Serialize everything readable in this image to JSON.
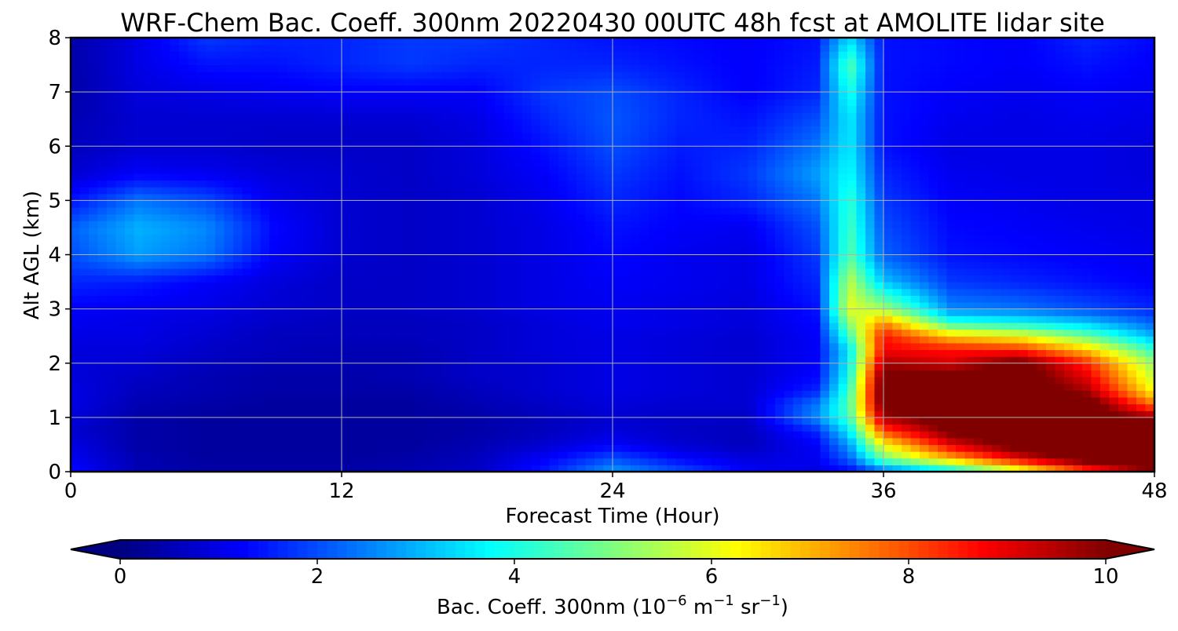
{
  "chart_data": {
    "type": "heatmap",
    "title": "WRF-Chem Bac. Coeff. 300nm  20220430 00UTC 48h fcst at AMOLITE lidar site",
    "xlabel": "Forecast Time (Hour)",
    "ylabel": "Alt AGL (km)",
    "xlim": [
      0,
      48
    ],
    "ylim": [
      0,
      8
    ],
    "xticks": [
      "0",
      "12",
      "24",
      "36",
      "48"
    ],
    "yticks": [
      "0",
      "1",
      "2",
      "3",
      "4",
      "5",
      "6",
      "7",
      "8"
    ],
    "grid": true,
    "colorbar": {
      "label_main": "Bac. Coeff. 300nm  (10",
      "label_exp1": "−6",
      "label_mid": " m",
      "label_exp2": "−1",
      "label_mid2": " sr",
      "label_exp3": "−1",
      "label_end": ")",
      "range": [
        0,
        10
      ],
      "ticks": [
        "0",
        "2",
        "4",
        "6",
        "8",
        "10"
      ],
      "extend": "both",
      "colormap": "jet",
      "under_color": "#000080",
      "over_color": "#800000",
      "placement": "bottom"
    },
    "x": [
      0,
      3,
      6,
      9,
      12,
      15,
      18,
      21,
      24,
      27,
      30,
      33,
      34.5,
      36,
      39,
      42,
      45,
      48
    ],
    "y": [
      0,
      0.25,
      0.5,
      0.75,
      1,
      1.25,
      1.5,
      1.75,
      2,
      2.25,
      2.5,
      2.75,
      3,
      3.5,
      4,
      4.5,
      5,
      5.5,
      6,
      6.5,
      7,
      7.5,
      8
    ],
    "z": [
      [
        1.4,
        0.5,
        0.4,
        0.4,
        0.4,
        0.5,
        0.7,
        1.5,
        2.8,
        2.0,
        1.2,
        1.0,
        1.2,
        2.2,
        3.4,
        5.6,
        8.0,
        10.0
      ],
      [
        1.1,
        0.5,
        0.3,
        0.3,
        0.3,
        0.4,
        0.6,
        1.2,
        2.0,
        1.3,
        0.9,
        1.1,
        2.2,
        4.8,
        7.0,
        9.0,
        10.6,
        10.8
      ],
      [
        1.0,
        0.4,
        0.3,
        0.3,
        0.3,
        0.3,
        0.5,
        0.8,
        1.2,
        0.8,
        0.6,
        1.2,
        2.8,
        6.2,
        9.0,
        10.5,
        10.8,
        10.8
      ],
      [
        0.8,
        0.4,
        0.3,
        0.3,
        0.3,
        0.3,
        0.4,
        0.6,
        0.9,
        0.7,
        0.6,
        1.6,
        3.6,
        8.0,
        10.2,
        10.6,
        10.6,
        10.6
      ],
      [
        0.9,
        0.4,
        0.3,
        0.3,
        0.3,
        0.3,
        0.4,
        0.6,
        0.8,
        0.7,
        0.7,
        2.6,
        4.4,
        9.6,
        10.6,
        10.6,
        10.6,
        9.8
      ],
      [
        1.0,
        0.5,
        0.4,
        0.3,
        0.3,
        0.3,
        0.5,
        0.7,
        0.9,
        0.8,
        0.8,
        2.4,
        4.6,
        10.4,
        10.8,
        10.8,
        10.6,
        7.6
      ],
      [
        1.0,
        0.6,
        0.5,
        0.4,
        0.4,
        0.4,
        0.6,
        0.8,
        1.0,
        0.9,
        0.8,
        1.6,
        4.4,
        10.6,
        10.8,
        10.8,
        9.6,
        6.2
      ],
      [
        0.9,
        0.7,
        0.5,
        0.4,
        0.4,
        0.5,
        0.7,
        0.8,
        1.0,
        0.9,
        0.8,
        1.3,
        4.0,
        10.4,
        10.4,
        10.6,
        9.0,
        5.6
      ],
      [
        0.9,
        0.8,
        0.6,
        0.5,
        0.5,
        0.5,
        0.7,
        0.8,
        1.0,
        0.9,
        0.8,
        1.2,
        3.8,
        9.6,
        9.2,
        10.4,
        8.4,
        5.2
      ],
      [
        0.9,
        0.9,
        0.7,
        0.6,
        0.5,
        0.5,
        0.7,
        0.9,
        1.0,
        0.9,
        0.8,
        1.2,
        3.6,
        8.8,
        8.6,
        8.4,
        6.8,
        4.2
      ],
      [
        1.0,
        1.0,
        0.8,
        0.6,
        0.6,
        0.6,
        0.7,
        0.9,
        1.0,
        0.9,
        0.8,
        1.2,
        4.4,
        8.6,
        6.8,
        6.2,
        4.8,
        3.0
      ],
      [
        1.1,
        1.0,
        0.9,
        0.7,
        0.6,
        0.6,
        0.7,
        0.9,
        1.1,
        1.0,
        0.9,
        1.3,
        5.2,
        7.4,
        4.2,
        3.8,
        3.2,
        2.2
      ],
      [
        1.2,
        1.1,
        1.0,
        0.8,
        0.7,
        0.7,
        0.8,
        1.0,
        1.1,
        1.0,
        0.9,
        1.4,
        6.0,
        5.4,
        2.6,
        2.4,
        2.0,
        1.6
      ],
      [
        1.6,
        1.5,
        1.2,
        0.9,
        0.7,
        0.7,
        0.8,
        1.0,
        1.2,
        1.1,
        1.0,
        1.6,
        5.6,
        3.2,
        1.8,
        1.6,
        1.4,
        1.2
      ],
      [
        2.0,
        2.8,
        2.4,
        1.2,
        0.8,
        0.7,
        0.8,
        1.0,
        1.3,
        1.1,
        1.0,
        1.8,
        4.6,
        2.2,
        1.4,
        1.3,
        1.2,
        1.1
      ],
      [
        2.2,
        3.0,
        2.6,
        1.3,
        0.8,
        0.7,
        0.8,
        1.0,
        1.4,
        1.2,
        1.1,
        2.0,
        4.4,
        2.0,
        1.3,
        1.2,
        1.1,
        1.0
      ],
      [
        1.4,
        2.4,
        2.0,
        1.1,
        0.8,
        0.7,
        0.8,
        1.1,
        1.6,
        1.3,
        1.6,
        2.4,
        4.2,
        1.8,
        1.2,
        1.1,
        1.0,
        1.0
      ],
      [
        0.8,
        1.2,
        1.1,
        0.9,
        0.8,
        0.7,
        0.9,
        1.2,
        1.8,
        1.4,
        1.8,
        2.8,
        3.8,
        1.6,
        1.1,
        1.0,
        1.0,
        0.9
      ],
      [
        0.6,
        0.8,
        0.8,
        0.7,
        0.7,
        0.7,
        0.9,
        1.4,
        2.0,
        1.5,
        1.6,
        2.4,
        3.6,
        1.4,
        1.0,
        1.0,
        1.0,
        0.9
      ],
      [
        0.5,
        0.8,
        0.8,
        0.8,
        0.8,
        0.8,
        1.0,
        1.6,
        2.1,
        1.6,
        1.4,
        2.0,
        3.6,
        1.4,
        1.1,
        1.0,
        1.1,
        1.0
      ],
      [
        0.4,
        0.9,
        1.0,
        1.1,
        1.2,
        1.2,
        1.2,
        1.8,
        2.0,
        1.6,
        1.2,
        1.6,
        4.0,
        1.4,
        1.2,
        1.1,
        1.2,
        1.1
      ],
      [
        0.4,
        1.0,
        1.4,
        1.4,
        1.6,
        1.8,
        1.6,
        1.6,
        1.6,
        1.4,
        1.2,
        1.5,
        4.6,
        1.4,
        1.3,
        1.2,
        1.4,
        1.2
      ],
      [
        0.4,
        1.0,
        1.8,
        1.6,
        1.6,
        1.8,
        1.8,
        1.6,
        1.4,
        1.3,
        1.2,
        1.4,
        3.4,
        1.4,
        1.3,
        1.2,
        1.6,
        1.3
      ]
    ]
  }
}
